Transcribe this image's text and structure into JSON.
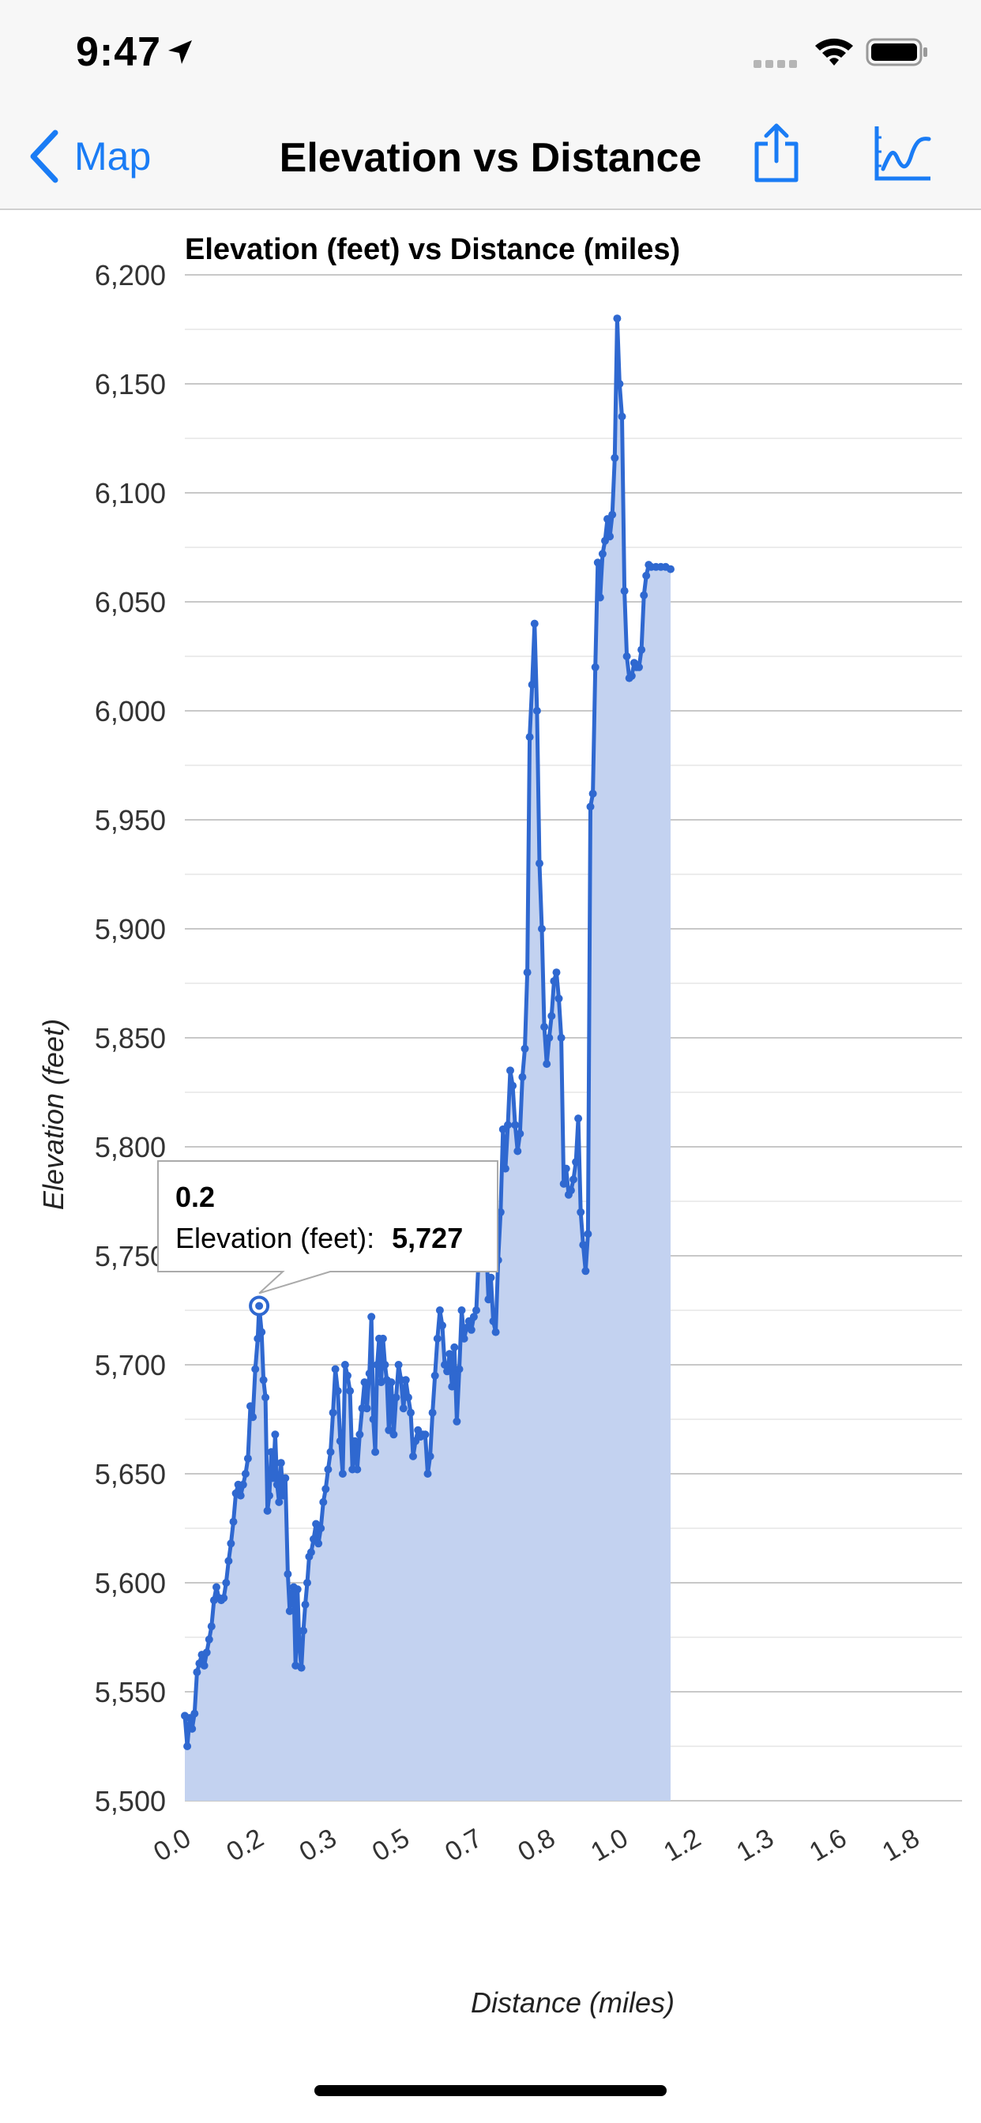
{
  "status_bar": {
    "time": "9:47",
    "icons": [
      "location-arrow-icon",
      "signal-icon",
      "wifi-icon",
      "battery-icon"
    ]
  },
  "nav": {
    "back_label": "Map",
    "title": "Elevation vs Distance",
    "icons": [
      "chevron-left-icon",
      "share-icon",
      "line-chart-icon"
    ],
    "accent_color": "#1a7cf5"
  },
  "chart_data": {
    "type": "area",
    "title": "Elevation (feet) vs Distance (miles)",
    "xlabel": "Distance (miles)",
    "ylabel": "Elevation (feet)",
    "ylim": [
      5500,
      6200
    ],
    "y_ticks": [
      "5,500",
      "5,550",
      "5,600",
      "5,650",
      "5,700",
      "5,750",
      "5,800",
      "5,850",
      "5,900",
      "5,950",
      "6,000",
      "6,050",
      "6,100",
      "6,150",
      "6,200"
    ],
    "x_tick_labels": [
      "0.0",
      "0.2",
      "0.3",
      "0.5",
      "0.7",
      "0.8",
      "1.0",
      "1.2",
      "1.3",
      "1.6",
      "1.8"
    ],
    "x_tick_positions": [
      0,
      0.15,
      0.3,
      0.45,
      0.6,
      0.75,
      0.9,
      1.05,
      1.2,
      1.35,
      1.5
    ],
    "xlim": [
      0,
      1.6
    ],
    "grid": true,
    "line_color": "#2f68d0",
    "fill_color": "#c3d2f0",
    "series": [
      {
        "values": [
          [
            0.0,
            5539
          ],
          [
            0.005,
            5525
          ],
          [
            0.01,
            5538
          ],
          [
            0.015,
            5533
          ],
          [
            0.02,
            5540
          ],
          [
            0.025,
            5559
          ],
          [
            0.03,
            5563
          ],
          [
            0.035,
            5567
          ],
          [
            0.04,
            5562
          ],
          [
            0.045,
            5568
          ],
          [
            0.05,
            5574
          ],
          [
            0.055,
            5580
          ],
          [
            0.06,
            5592
          ],
          [
            0.065,
            5598
          ],
          [
            0.07,
            5593
          ],
          [
            0.075,
            5592
          ],
          [
            0.08,
            5593
          ],
          [
            0.085,
            5600
          ],
          [
            0.09,
            5610
          ],
          [
            0.095,
            5618
          ],
          [
            0.1,
            5628
          ],
          [
            0.105,
            5641
          ],
          [
            0.11,
            5645
          ],
          [
            0.115,
            5640
          ],
          [
            0.12,
            5645
          ],
          [
            0.125,
            5650
          ],
          [
            0.13,
            5657
          ],
          [
            0.135,
            5681
          ],
          [
            0.14,
            5676
          ],
          [
            0.145,
            5698
          ],
          [
            0.15,
            5712
          ],
          [
            0.153,
            5727
          ],
          [
            0.158,
            5715
          ],
          [
            0.162,
            5693
          ],
          [
            0.166,
            5685
          ],
          [
            0.17,
            5633
          ],
          [
            0.174,
            5640
          ],
          [
            0.178,
            5660
          ],
          [
            0.182,
            5648
          ],
          [
            0.186,
            5668
          ],
          [
            0.19,
            5645
          ],
          [
            0.194,
            5637
          ],
          [
            0.198,
            5655
          ],
          [
            0.202,
            5640
          ],
          [
            0.207,
            5648
          ],
          [
            0.212,
            5604
          ],
          [
            0.216,
            5587
          ],
          [
            0.22,
            5595
          ],
          [
            0.224,
            5598
          ],
          [
            0.228,
            5562
          ],
          [
            0.232,
            5597
          ],
          [
            0.236,
            5570
          ],
          [
            0.24,
            5561
          ],
          [
            0.244,
            5578
          ],
          [
            0.248,
            5590
          ],
          [
            0.252,
            5600
          ],
          [
            0.256,
            5612
          ],
          [
            0.26,
            5614
          ],
          [
            0.265,
            5620
          ],
          [
            0.27,
            5627
          ],
          [
            0.275,
            5618
          ],
          [
            0.28,
            5625
          ],
          [
            0.285,
            5637
          ],
          [
            0.29,
            5643
          ],
          [
            0.295,
            5652
          ],
          [
            0.3,
            5660
          ],
          [
            0.305,
            5678
          ],
          [
            0.31,
            5698
          ],
          [
            0.315,
            5688
          ],
          [
            0.32,
            5665
          ],
          [
            0.325,
            5650
          ],
          [
            0.33,
            5700
          ],
          [
            0.335,
            5695
          ],
          [
            0.34,
            5688
          ],
          [
            0.345,
            5652
          ],
          [
            0.35,
            5665
          ],
          [
            0.355,
            5652
          ],
          [
            0.36,
            5668
          ],
          [
            0.365,
            5680
          ],
          [
            0.37,
            5692
          ],
          [
            0.375,
            5680
          ],
          [
            0.38,
            5696
          ],
          [
            0.384,
            5722
          ],
          [
            0.388,
            5675
          ],
          [
            0.392,
            5660
          ],
          [
            0.396,
            5700
          ],
          [
            0.4,
            5712
          ],
          [
            0.404,
            5692
          ],
          [
            0.408,
            5712
          ],
          [
            0.412,
            5700
          ],
          [
            0.416,
            5693
          ],
          [
            0.42,
            5670
          ],
          [
            0.425,
            5692
          ],
          [
            0.43,
            5668
          ],
          [
            0.435,
            5685
          ],
          [
            0.44,
            5700
          ],
          [
            0.445,
            5693
          ],
          [
            0.45,
            5680
          ],
          [
            0.455,
            5693
          ],
          [
            0.46,
            5685
          ],
          [
            0.465,
            5678
          ],
          [
            0.47,
            5658
          ],
          [
            0.475,
            5665
          ],
          [
            0.48,
            5670
          ],
          [
            0.485,
            5667
          ],
          [
            0.49,
            5668
          ],
          [
            0.495,
            5668
          ],
          [
            0.5,
            5650
          ],
          [
            0.505,
            5658
          ],
          [
            0.51,
            5678
          ],
          [
            0.515,
            5695
          ],
          [
            0.52,
            5712
          ],
          [
            0.525,
            5725
          ],
          [
            0.53,
            5718
          ],
          [
            0.535,
            5700
          ],
          [
            0.54,
            5697
          ],
          [
            0.545,
            5705
          ],
          [
            0.55,
            5690
          ],
          [
            0.555,
            5708
          ],
          [
            0.56,
            5674
          ],
          [
            0.565,
            5698
          ],
          [
            0.57,
            5725
          ],
          [
            0.575,
            5712
          ],
          [
            0.58,
            5717
          ],
          [
            0.585,
            5720
          ],
          [
            0.59,
            5716
          ],
          [
            0.595,
            5722
          ],
          [
            0.6,
            5725
          ],
          [
            0.605,
            5750
          ],
          [
            0.61,
            5775
          ],
          [
            0.615,
            5780
          ],
          [
            0.62,
            5760
          ],
          [
            0.625,
            5730
          ],
          [
            0.63,
            5740
          ],
          [
            0.635,
            5720
          ],
          [
            0.64,
            5715
          ],
          [
            0.645,
            5748
          ],
          [
            0.65,
            5770
          ],
          [
            0.655,
            5808
          ],
          [
            0.66,
            5790
          ],
          [
            0.665,
            5810
          ],
          [
            0.67,
            5835
          ],
          [
            0.675,
            5828
          ],
          [
            0.68,
            5810
          ],
          [
            0.685,
            5798
          ],
          [
            0.69,
            5806
          ],
          [
            0.695,
            5832
          ],
          [
            0.7,
            5845
          ],
          [
            0.705,
            5880
          ],
          [
            0.71,
            5988
          ],
          [
            0.715,
            6012
          ],
          [
            0.72,
            6040
          ],
          [
            0.725,
            6000
          ],
          [
            0.73,
            5930
          ],
          [
            0.735,
            5900
          ],
          [
            0.74,
            5855
          ],
          [
            0.745,
            5838
          ],
          [
            0.75,
            5850
          ],
          [
            0.755,
            5860
          ],
          [
            0.76,
            5876
          ],
          [
            0.765,
            5880
          ],
          [
            0.77,
            5868
          ],
          [
            0.775,
            5850
          ],
          [
            0.78,
            5783
          ],
          [
            0.785,
            5790
          ],
          [
            0.79,
            5778
          ],
          [
            0.795,
            5780
          ],
          [
            0.8,
            5785
          ],
          [
            0.805,
            5793
          ],
          [
            0.81,
            5813
          ],
          [
            0.815,
            5770
          ],
          [
            0.82,
            5755
          ],
          [
            0.825,
            5743
          ],
          [
            0.83,
            5760
          ],
          [
            0.835,
            5956
          ],
          [
            0.84,
            5962
          ],
          [
            0.845,
            6020
          ],
          [
            0.85,
            6068
          ],
          [
            0.855,
            6052
          ],
          [
            0.86,
            6072
          ],
          [
            0.865,
            6078
          ],
          [
            0.87,
            6088
          ],
          [
            0.875,
            6080
          ],
          [
            0.88,
            6090
          ],
          [
            0.885,
            6116
          ],
          [
            0.89,
            6180
          ],
          [
            0.895,
            6150
          ],
          [
            0.9,
            6135
          ],
          [
            0.905,
            6055
          ],
          [
            0.91,
            6025
          ],
          [
            0.915,
            6015
          ],
          [
            0.92,
            6016
          ],
          [
            0.925,
            6022
          ],
          [
            0.93,
            6020
          ],
          [
            0.935,
            6020
          ],
          [
            0.94,
            6028
          ],
          [
            0.945,
            6053
          ],
          [
            0.95,
            6062
          ],
          [
            0.955,
            6067
          ],
          [
            0.96,
            6066
          ],
          [
            0.97,
            6066
          ],
          [
            0.98,
            6066
          ],
          [
            0.99,
            6066
          ],
          [
            1.0,
            6065
          ]
        ]
      }
    ],
    "tooltip": {
      "x_label": "0.2",
      "series_label": "Elevation (feet):",
      "value": "5,727",
      "point": [
        0.153,
        5727
      ]
    }
  }
}
